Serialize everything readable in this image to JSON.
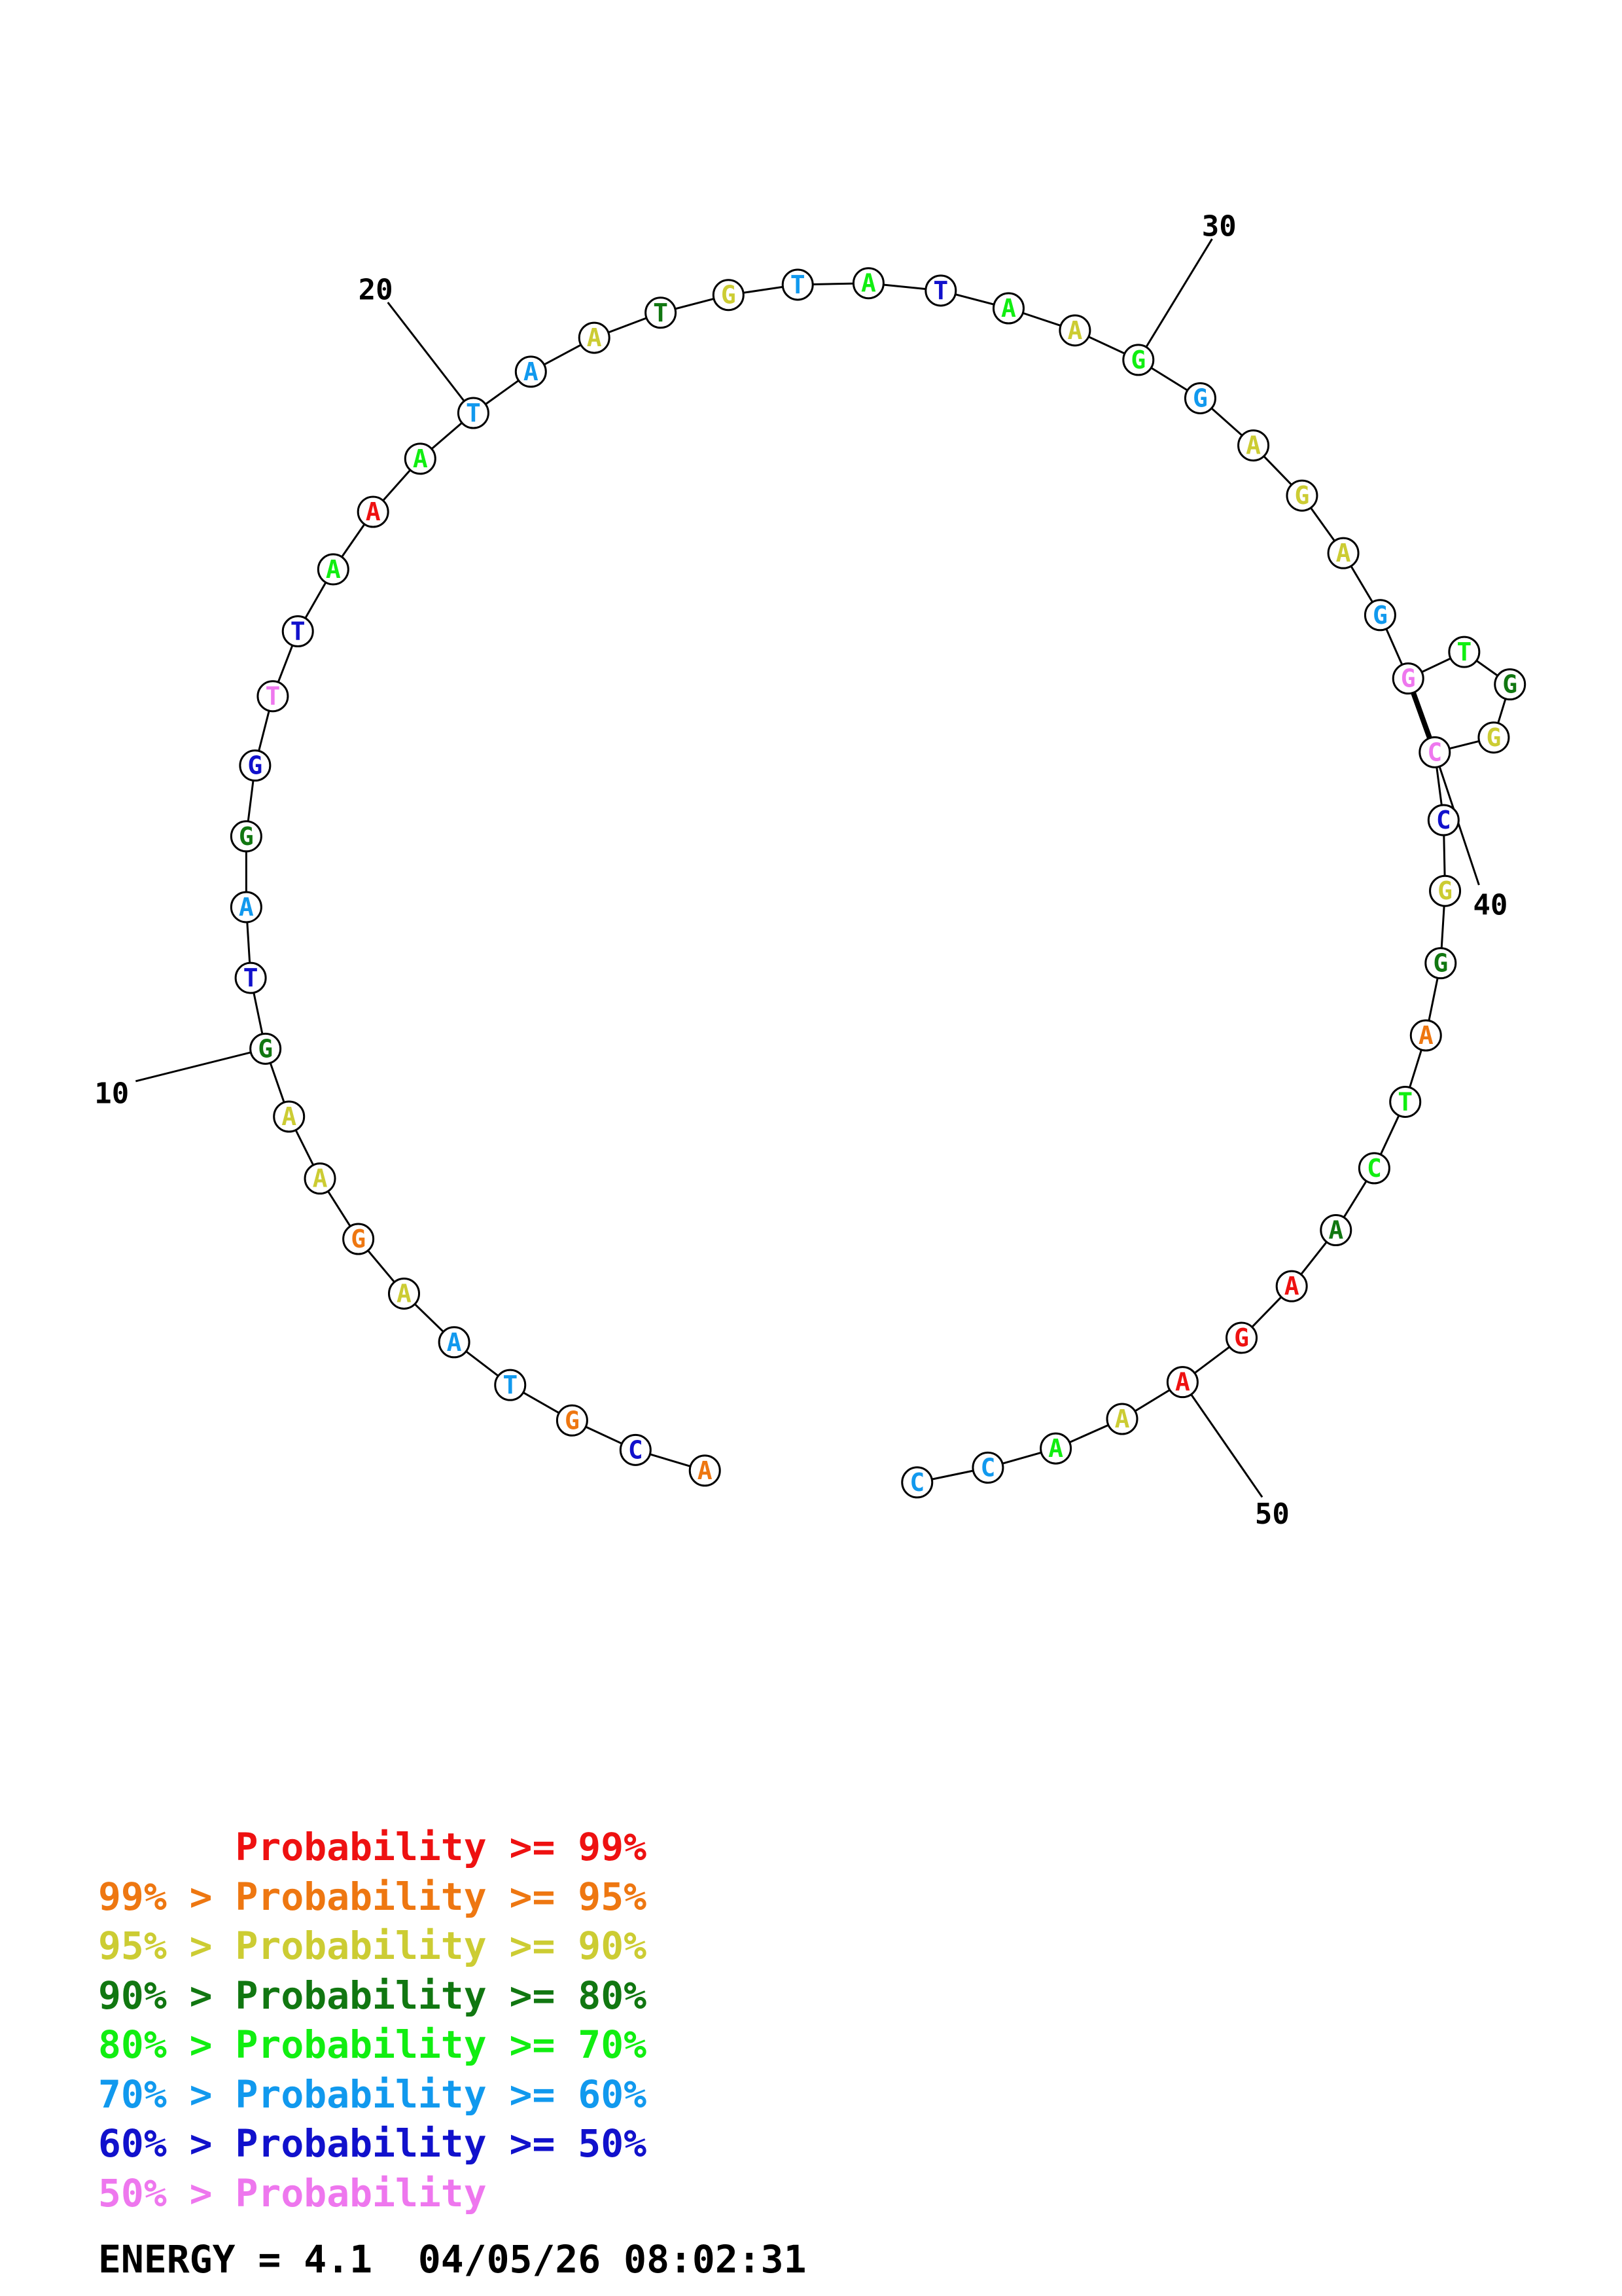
{
  "sequence": [
    "A",
    "C",
    "G",
    "T",
    "A",
    "A",
    "G",
    "A",
    "A",
    "G",
    "T",
    "A",
    "G",
    "G",
    "T",
    "T",
    "A",
    "A",
    "A",
    "T",
    "A",
    "A",
    "T",
    "G",
    "T",
    "A",
    "T",
    "A",
    "A",
    "G",
    "G",
    "A",
    "G",
    "A",
    "G",
    "G",
    "T",
    "G",
    "G",
    "C",
    "C",
    "G",
    "G",
    "A",
    "T",
    "C",
    "A",
    "A",
    "G",
    "A",
    "A",
    "A",
    "C",
    "C"
  ],
  "probability_classes": [
    "orange",
    "blue",
    "orange",
    "cyan",
    "cyan",
    "yellow",
    "orange",
    "yellow",
    "yellow",
    "dkgreen",
    "blue",
    "cyan",
    "dkgreen",
    "blue",
    "violet",
    "blue",
    "green",
    "red",
    "green",
    "cyan",
    "cyan",
    "yellow",
    "dkgreen",
    "yellow",
    "cyan",
    "green",
    "blue",
    "green",
    "yellow",
    "green",
    "cyan",
    "yellow",
    "yellow",
    "yellow",
    "cyan",
    "violet",
    "green",
    "dkgreen",
    "yellow",
    "violet",
    "blue",
    "yellow",
    "dkgreen",
    "orange",
    "green",
    "green",
    "dkgreen",
    "red",
    "red",
    "red",
    "yellow",
    "green",
    "cyan",
    "cyan"
  ],
  "base_pairs": [
    [
      36,
      40
    ]
  ],
  "position_labels": [
    {
      "index": 10,
      "text": "10"
    },
    {
      "index": 20,
      "text": "20"
    },
    {
      "index": 30,
      "text": "30"
    },
    {
      "index": 40,
      "text": "40"
    },
    {
      "index": 50,
      "text": "50"
    }
  ],
  "colors": {
    "red": "#ee1111",
    "orange": "#ee7711",
    "yellow": "#cccc33",
    "dkgreen": "#117711",
    "green": "#11ee11",
    "cyan": "#1199ee",
    "blue": "#1111cc",
    "violet": "#ee77ee"
  },
  "legend": [
    {
      "prefix": "",
      "label": "Probability >= 99%",
      "color_key": "red"
    },
    {
      "prefix": "99% > ",
      "label": "Probability >= 95%",
      "color_key": "orange"
    },
    {
      "prefix": "95% > ",
      "label": "Probability >= 90%",
      "color_key": "yellow"
    },
    {
      "prefix": "90% > ",
      "label": "Probability >= 80%",
      "color_key": "dkgreen"
    },
    {
      "prefix": "80% > ",
      "label": "Probability >= 70%",
      "color_key": "green"
    },
    {
      "prefix": "70% > ",
      "label": "Probability >= 60%",
      "color_key": "cyan"
    },
    {
      "prefix": "60% > ",
      "label": "Probability >= 50%",
      "color_key": "blue"
    },
    {
      "prefix": "50% > ",
      "label": "Probability",
      "color_key": "violet"
    }
  ],
  "footer": {
    "energy_label": "ENERGY = 4.1",
    "timestamp": "04/05/26 08:02:31"
  }
}
